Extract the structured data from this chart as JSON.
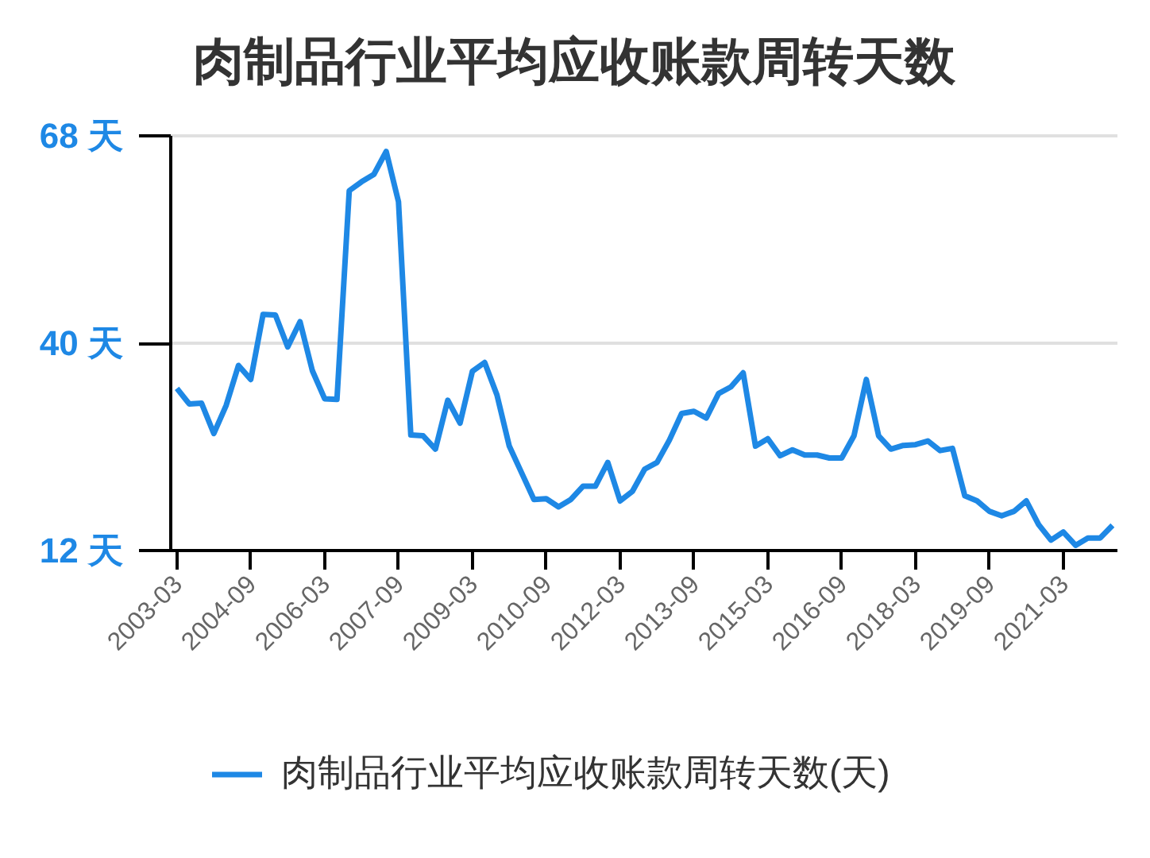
{
  "chart_data": {
    "type": "line",
    "title": "肉制品行业平均应收账款周转天数",
    "categories": [
      "2003-03",
      null,
      null,
      null,
      null,
      null,
      "2004-09",
      null,
      null,
      null,
      null,
      null,
      "2006-03",
      null,
      null,
      null,
      null,
      null,
      "2007-09",
      null,
      null,
      null,
      null,
      null,
      "2009-03",
      null,
      null,
      null,
      null,
      null,
      "2010-09",
      null,
      null,
      null,
      null,
      null,
      "2012-03",
      null,
      null,
      null,
      null,
      null,
      "2013-09",
      null,
      null,
      null,
      null,
      null,
      "2015-03",
      null,
      null,
      null,
      null,
      null,
      "2016-09",
      null,
      null,
      null,
      null,
      null,
      "2018-03",
      null,
      null,
      null,
      null,
      null,
      "2019-09",
      null,
      null,
      null,
      null,
      null,
      "2021-03",
      null,
      null,
      null,
      null
    ],
    "series": [
      {
        "name": "肉制品行业平均应收账款周转天数(天)",
        "color": "#1e88e5",
        "values": [
          33.9,
          31.8,
          31.9,
          27.8,
          31.6,
          37.0,
          35.1,
          43.9,
          43.8,
          39.5,
          42.9,
          36.3,
          32.5,
          32.4,
          60.6,
          61.8,
          62.8,
          65.9,
          59.1,
          27.6,
          27.5,
          25.7,
          32.3,
          29.2,
          36.2,
          37.4,
          33.0,
          26.1,
          22.5,
          18.9,
          19.0,
          17.9,
          18.9,
          20.7,
          20.7,
          23.9,
          18.7,
          20.0,
          23.0,
          23.9,
          26.9,
          30.5,
          30.8,
          29.9,
          33.2,
          34.1,
          36.0,
          26.1,
          27.1,
          24.8,
          25.6,
          24.9,
          24.9,
          24.5,
          24.5,
          27.5,
          35.1,
          27.5,
          25.7,
          26.2,
          26.3,
          26.8,
          25.5,
          25.8,
          19.4,
          18.7,
          17.3,
          16.7,
          17.3,
          18.7,
          15.5,
          13.4,
          14.5,
          12.7,
          13.7,
          13.7,
          15.4
        ]
      }
    ],
    "ylim": [
      12,
      68
    ],
    "yticks": [
      {
        "value": 12,
        "label": "12 天"
      },
      {
        "value": 40,
        "label": "40 天"
      },
      {
        "value": 68,
        "label": "68 天"
      }
    ],
    "grid": "y",
    "legend": "bottom",
    "line_style": "solid"
  }
}
